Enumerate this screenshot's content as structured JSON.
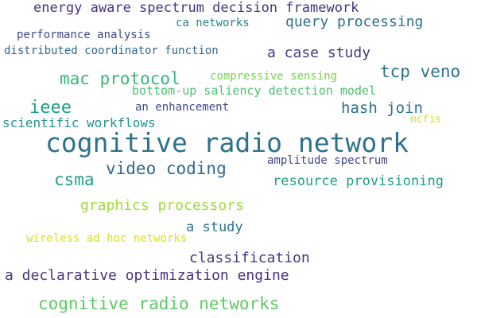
{
  "words": [
    {
      "text": "energy aware spectrum decision framework",
      "color": "#46337e"
    },
    {
      "text": "ca networks",
      "color": "#26828e"
    },
    {
      "text": "query processing",
      "color": "#2c728e"
    },
    {
      "text": "performance analysis",
      "color": "#3e4989"
    },
    {
      "text": "distributed coordinator function",
      "color": "#31688e"
    },
    {
      "text": "a case study",
      "color": "#443a83"
    },
    {
      "text": "tcp veno",
      "color": "#2c728e"
    },
    {
      "text": "mac protocol",
      "color": "#35b779"
    },
    {
      "text": "compressive sensing",
      "color": "#7ad151"
    },
    {
      "text": "bottom-up saliency detection model",
      "color": "#4ac16d"
    },
    {
      "text": "ieee",
      "color": "#1f9e89"
    },
    {
      "text": "an enhancement",
      "color": "#3e4989"
    },
    {
      "text": "hash join",
      "color": "#2c728e"
    },
    {
      "text": "mcfis",
      "color": "#d2e21b"
    },
    {
      "text": "scientific workflows",
      "color": "#21918c"
    },
    {
      "text": "cognitive radio network",
      "color": "#2c728e"
    },
    {
      "text": "video coding",
      "color": "#31688e"
    },
    {
      "text": "amplitude spectrum",
      "color": "#414487"
    },
    {
      "text": "csma",
      "color": "#1f9e89"
    },
    {
      "text": "resource provisioning",
      "color": "#1f9e89"
    },
    {
      "text": "graphics processors",
      "color": "#a0da39"
    },
    {
      "text": "a study",
      "color": "#2c728e"
    },
    {
      "text": "wireless ad hoc networks",
      "color": "#d8e219"
    },
    {
      "text": "classification",
      "color": "#443983"
    },
    {
      "text": "a declarative optimization engine",
      "color": "#46337e"
    },
    {
      "text": "cognitive radio networks",
      "color": "#5ec962"
    }
  ]
}
